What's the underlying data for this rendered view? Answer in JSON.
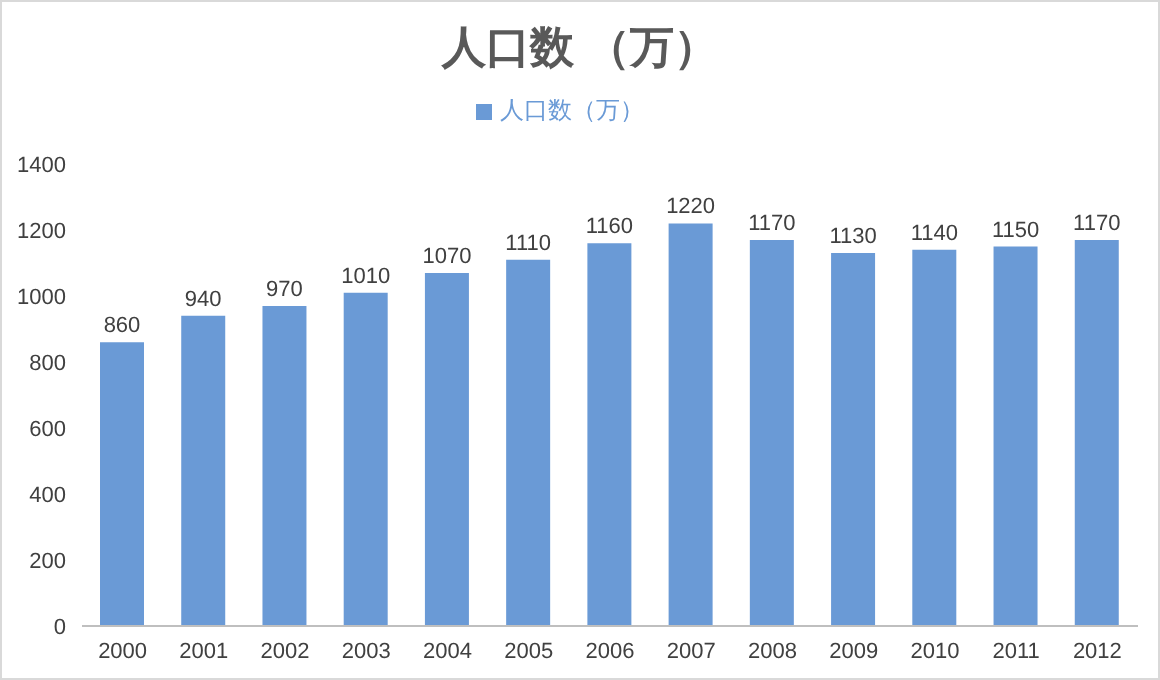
{
  "chart_data": {
    "type": "bar",
    "title": "人口数 （万）",
    "categories": [
      "2000",
      "2001",
      "2002",
      "2003",
      "2004",
      "2005",
      "2006",
      "2007",
      "2008",
      "2009",
      "2010",
      "2011",
      "2012"
    ],
    "series": [
      {
        "name": "人口数（万）",
        "color": "#6a9ad6",
        "values": [
          860,
          940,
          970,
          1010,
          1070,
          1110,
          1160,
          1220,
          1170,
          1130,
          1140,
          1150,
          1170
        ]
      }
    ],
    "ylim": [
      0,
      1400
    ],
    "yticks": [
      0,
      200,
      400,
      600,
      800,
      1000,
      1200,
      1400
    ],
    "grid": false,
    "legend": "top",
    "data_labels": true
  }
}
